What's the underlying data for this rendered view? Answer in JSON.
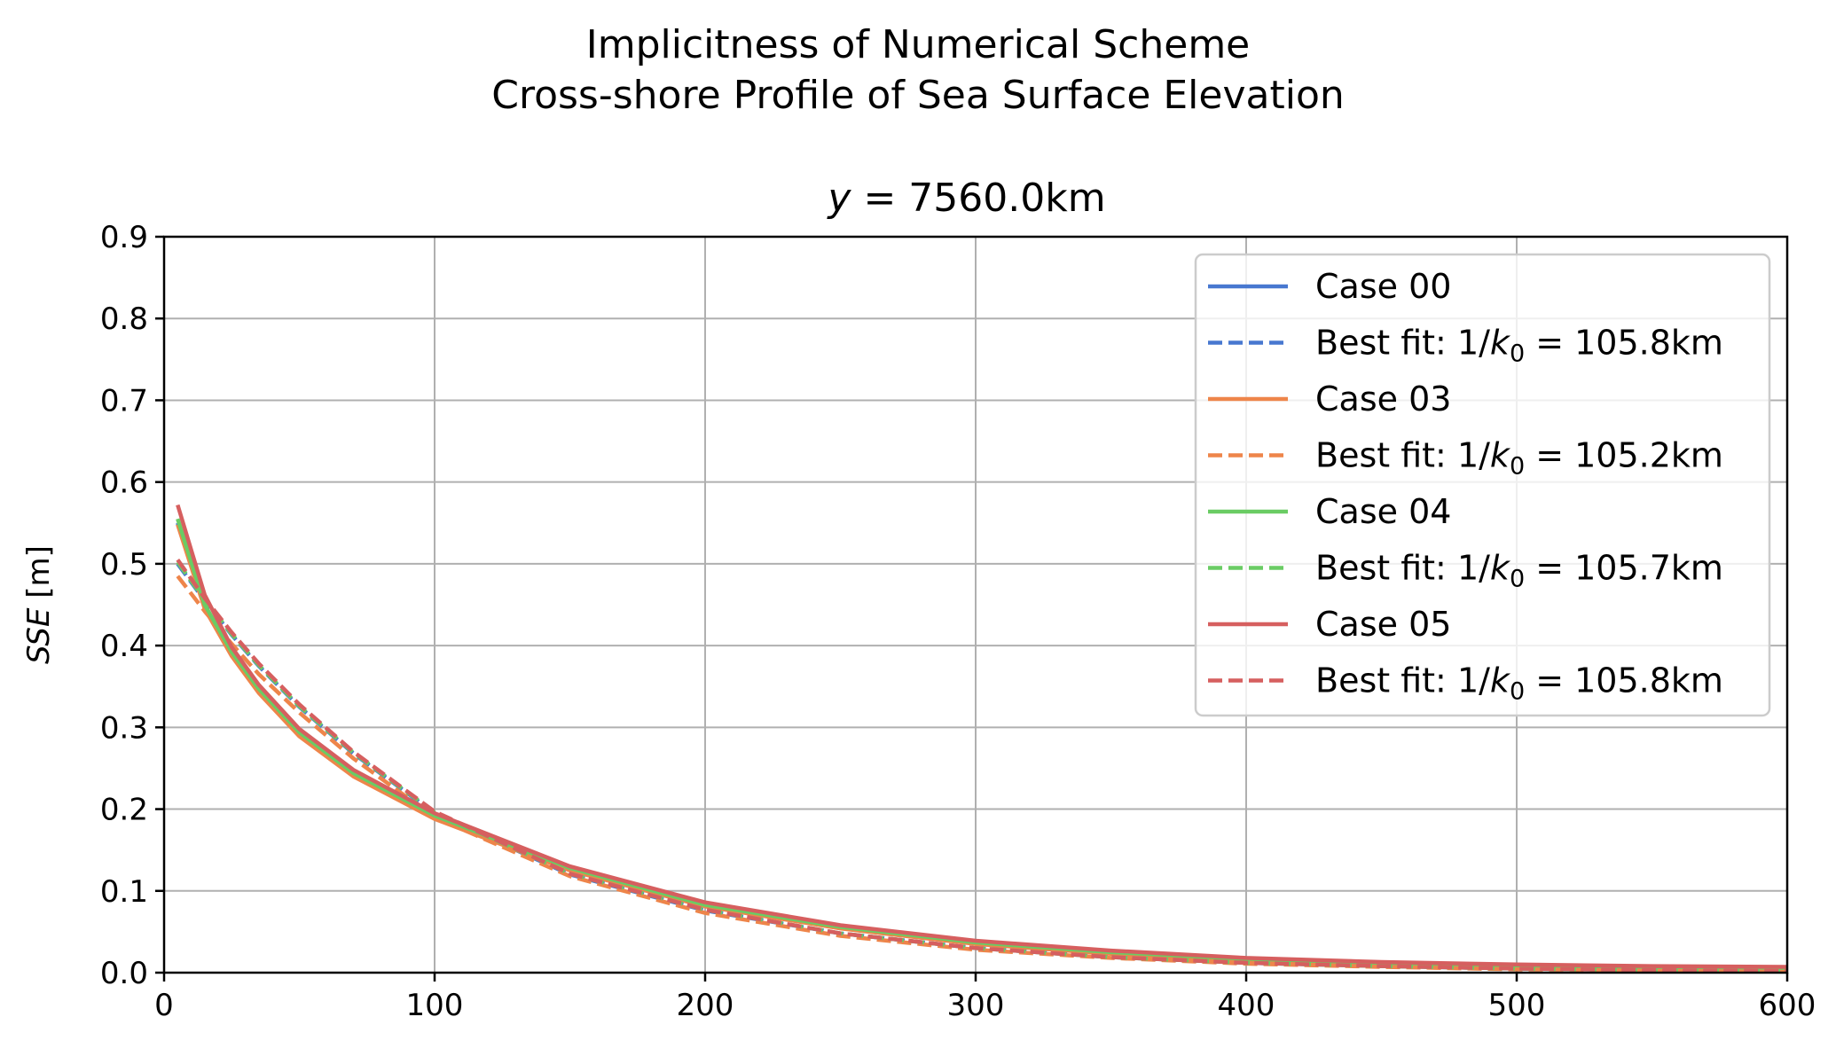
{
  "figure": {
    "suptitle_line1": "Implicitness of Numerical Scheme",
    "suptitle_line2": "Cross-shore Profile of Sea Surface Elevation"
  },
  "chart_data": {
    "type": "line",
    "title": "y = 7560.0km",
    "xlabel": "",
    "ylabel": "SSE [m]",
    "xlim": [
      0,
      600
    ],
    "ylim": [
      0,
      0.9
    ],
    "xticks": [
      "0",
      "100",
      "200",
      "300",
      "400",
      "500",
      "600"
    ],
    "yticks": [
      "0.0",
      "0.1",
      "0.2",
      "0.3",
      "0.4",
      "0.5",
      "0.6",
      "0.7",
      "0.8",
      "0.9"
    ],
    "grid": true,
    "legend_position": "top-right",
    "x": [
      5,
      15,
      25,
      35,
      50,
      70,
      100,
      150,
      200,
      250,
      300,
      350,
      400,
      450,
      500,
      550,
      600
    ],
    "series": [
      {
        "name": "Case 00",
        "color": "#4878d0",
        "style": "solid",
        "values": [
          0.55,
          0.448,
          0.39,
          0.345,
          0.292,
          0.242,
          0.19,
          0.126,
          0.082,
          0.055,
          0.036,
          0.024,
          0.016,
          0.011,
          0.008,
          0.006,
          0.005
        ]
      },
      {
        "name": "Best fit: 1/k0 = 105.8km",
        "color": "#4878d0",
        "style": "dashed",
        "values": [
          0.5,
          0.455,
          0.413,
          0.375,
          0.325,
          0.268,
          0.195,
          0.12,
          0.076,
          0.048,
          0.03,
          0.019,
          0.012,
          0.008,
          0.005,
          0.003,
          0.002
        ]
      },
      {
        "name": "Case 03",
        "color": "#ee854a",
        "style": "solid",
        "values": [
          0.548,
          0.445,
          0.387,
          0.342,
          0.289,
          0.24,
          0.188,
          0.125,
          0.081,
          0.054,
          0.035,
          0.023,
          0.015,
          0.01,
          0.007,
          0.005,
          0.004
        ]
      },
      {
        "name": "Best fit: 1/k0 = 105.2km",
        "color": "#ee854a",
        "style": "dashed",
        "values": [
          0.485,
          0.442,
          0.402,
          0.365,
          0.318,
          0.262,
          0.19,
          0.118,
          0.073,
          0.045,
          0.028,
          0.018,
          0.011,
          0.007,
          0.004,
          0.003,
          0.002
        ]
      },
      {
        "name": "Case 04",
        "color": "#6acc64",
        "style": "solid",
        "values": [
          0.555,
          0.45,
          0.392,
          0.347,
          0.294,
          0.244,
          0.192,
          0.128,
          0.083,
          0.056,
          0.037,
          0.025,
          0.017,
          0.012,
          0.009,
          0.007,
          0.006
        ]
      },
      {
        "name": "Best fit: 1/k0 = 105.7km",
        "color": "#6acc64",
        "style": "dashed",
        "values": [
          0.502,
          0.456,
          0.414,
          0.376,
          0.326,
          0.269,
          0.196,
          0.121,
          0.077,
          0.048,
          0.03,
          0.019,
          0.012,
          0.008,
          0.005,
          0.003,
          0.002
        ]
      },
      {
        "name": "Case 05",
        "color": "#d65f5f",
        "style": "solid",
        "values": [
          0.572,
          0.462,
          0.398,
          0.352,
          0.298,
          0.248,
          0.195,
          0.13,
          0.086,
          0.058,
          0.039,
          0.027,
          0.018,
          0.013,
          0.01,
          0.008,
          0.007
        ]
      },
      {
        "name": "Best fit: 1/k0 = 105.8km",
        "color": "#d65f5f",
        "style": "dashed",
        "values": [
          0.505,
          0.458,
          0.416,
          0.378,
          0.328,
          0.27,
          0.197,
          0.121,
          0.077,
          0.048,
          0.03,
          0.019,
          0.012,
          0.008,
          0.005,
          0.003,
          0.002
        ]
      }
    ]
  },
  "legend": {
    "items": [
      {
        "label_prefix": "Case 00",
        "label_math": "",
        "label_suffix": ""
      },
      {
        "label_prefix": "Best fit: 1/",
        "label_math": "k",
        "label_sub": "0",
        "label_suffix": " = 105.8km"
      },
      {
        "label_prefix": "Case 03",
        "label_math": "",
        "label_suffix": ""
      },
      {
        "label_prefix": "Best fit: 1/",
        "label_math": "k",
        "label_sub": "0",
        "label_suffix": " = 105.2km"
      },
      {
        "label_prefix": "Case 04",
        "label_math": "",
        "label_suffix": ""
      },
      {
        "label_prefix": "Best fit: 1/",
        "label_math": "k",
        "label_sub": "0",
        "label_suffix": " = 105.7km"
      },
      {
        "label_prefix": "Case 05",
        "label_math": "",
        "label_suffix": ""
      },
      {
        "label_prefix": "Best fit: 1/",
        "label_math": "k",
        "label_sub": "0",
        "label_suffix": " = 105.8km"
      }
    ]
  },
  "axis_title": {
    "math_part": "y",
    "rest": " = 7560.0km"
  },
  "ylabel_parts": {
    "math_part": "SSE",
    "rest": " [m]"
  }
}
